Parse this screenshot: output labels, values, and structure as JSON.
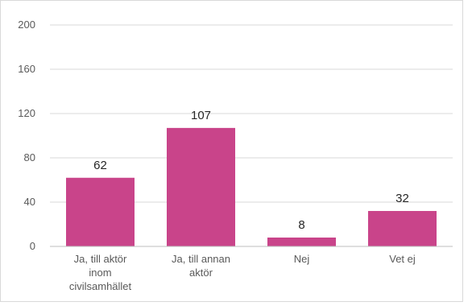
{
  "chart_data": {
    "type": "bar",
    "categories": [
      "Ja, till aktör inom civilsamhället",
      "Ja, till annan aktör",
      "Nej",
      "Vet ej"
    ],
    "category_lines": [
      [
        "Ja, till aktör",
        "inom",
        "civilsamhället"
      ],
      [
        "Ja, till annan",
        "aktör"
      ],
      [
        "Nej"
      ],
      [
        "Vet ej"
      ]
    ],
    "values": [
      62,
      107,
      8,
      32
    ],
    "data_labels": [
      "62",
      "107",
      "8",
      "32"
    ],
    "ylim": [
      0,
      200
    ],
    "yticks": [
      0,
      40,
      80,
      120,
      160,
      200
    ],
    "ytick_labels": [
      "0",
      "40",
      "80",
      "120",
      "160",
      "200"
    ],
    "grid": true,
    "bar_color": "#c9448a",
    "title": "",
    "xlabel": "",
    "ylabel": ""
  }
}
